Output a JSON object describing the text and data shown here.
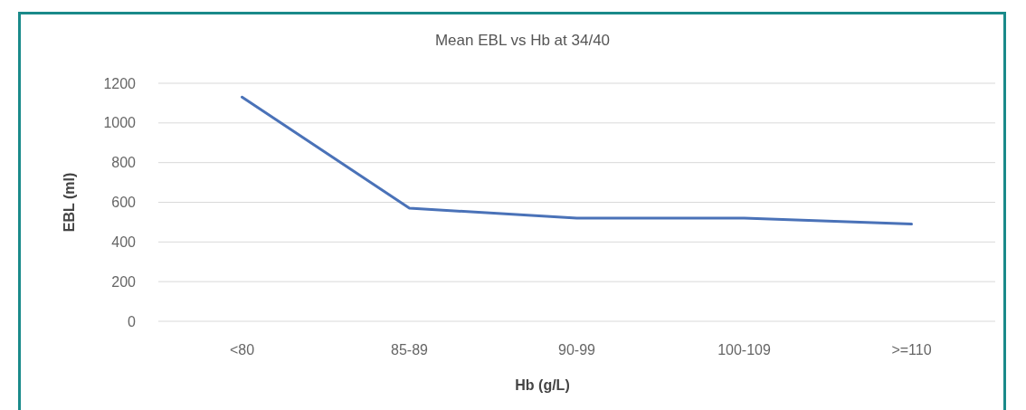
{
  "chart_data": {
    "type": "line",
    "title": "Mean EBL vs Hb at 34/40",
    "xlabel": "Hb (g/L)",
    "ylabel": "EBL (ml)",
    "categories": [
      "<80",
      "85-89",
      "90-99",
      "100-109",
      ">=110"
    ],
    "series": [
      {
        "color": "#4a72b8",
        "values": [
          1130,
          570,
          520,
          520,
          490
        ]
      }
    ],
    "ylim": [
      0,
      1200
    ],
    "yticks": [
      0,
      200,
      400,
      600,
      800,
      1000,
      1200
    ],
    "grid": "y",
    "marker": "none",
    "line_style": "solid"
  }
}
